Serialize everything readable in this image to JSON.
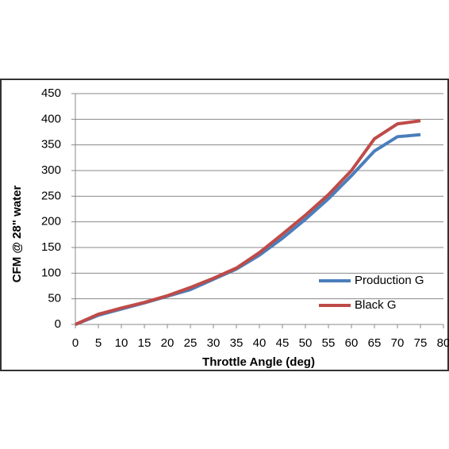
{
  "chart_data": {
    "type": "line",
    "x_label": "Throttle Angle (deg)",
    "y_label": "CFM @ 28\" water",
    "x": [
      0,
      5,
      10,
      15,
      20,
      25,
      30,
      35,
      40,
      45,
      50,
      55,
      60,
      65,
      70,
      75
    ],
    "series": [
      {
        "name": "Production G",
        "color": "#4a7ebb",
        "values": [
          0,
          18,
          30,
          42,
          55,
          68,
          88,
          108,
          135,
          168,
          205,
          245,
          290,
          338,
          366,
          370
        ]
      },
      {
        "name": "Black G",
        "color": "#be4b48",
        "values": [
          0,
          20,
          32,
          43,
          56,
          72,
          90,
          110,
          140,
          176,
          213,
          253,
          300,
          362,
          391,
          397
        ]
      }
    ],
    "xlim": [
      0,
      80
    ],
    "xticks": [
      0,
      5,
      10,
      15,
      20,
      25,
      30,
      35,
      40,
      45,
      50,
      55,
      60,
      65,
      70,
      75,
      80
    ],
    "ylim": [
      0,
      450
    ],
    "yticks": [
      0,
      50,
      100,
      150,
      200,
      250,
      300,
      350,
      400,
      450
    ],
    "grid": true,
    "legend": "lower-right"
  }
}
